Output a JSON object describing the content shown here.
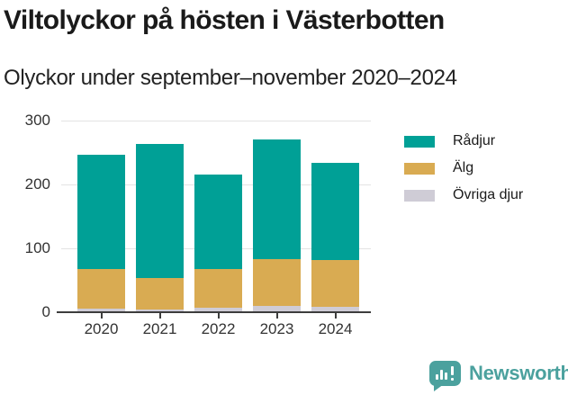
{
  "header": {
    "title": "Viltolyckor på hösten i Västerbotten",
    "subtitle": "Olyckor under september–november 2020–2024"
  },
  "chart_data": {
    "type": "bar",
    "stacked": true,
    "title": "Viltolyckor på hösten i Västerbotten",
    "subtitle": "Olyckor under september–november 2020–2024",
    "categories": [
      "2020",
      "2021",
      "2022",
      "2023",
      "2024"
    ],
    "series": [
      {
        "name": "Rådjur",
        "color": "#00a096",
        "values": [
          179,
          210,
          148,
          187,
          152
        ]
      },
      {
        "name": "Älg",
        "color": "#d9ab52",
        "values": [
          62,
          50,
          60,
          73,
          74
        ]
      },
      {
        "name": "Övriga djur",
        "color": "#cfccd6",
        "values": [
          5,
          4,
          7,
          10,
          8
        ]
      }
    ],
    "stack_order_bottom_to_top": [
      "Övriga djur",
      "Älg",
      "Rådjur"
    ],
    "totals": [
      246,
      264,
      215,
      270,
      234
    ],
    "xlabel": "",
    "ylabel": "",
    "ylim": [
      0,
      300
    ],
    "yticks": [
      0,
      100,
      200,
      300
    ],
    "grid": true,
    "gridline_color": "#e3e3e3",
    "axis_color": "#3d3d3d",
    "legend_position": "right"
  },
  "footer": {
    "brand": "Newsworthy",
    "brand_color": "#4ba19e",
    "logo_icon": "bar-chart-speech-bubble"
  }
}
